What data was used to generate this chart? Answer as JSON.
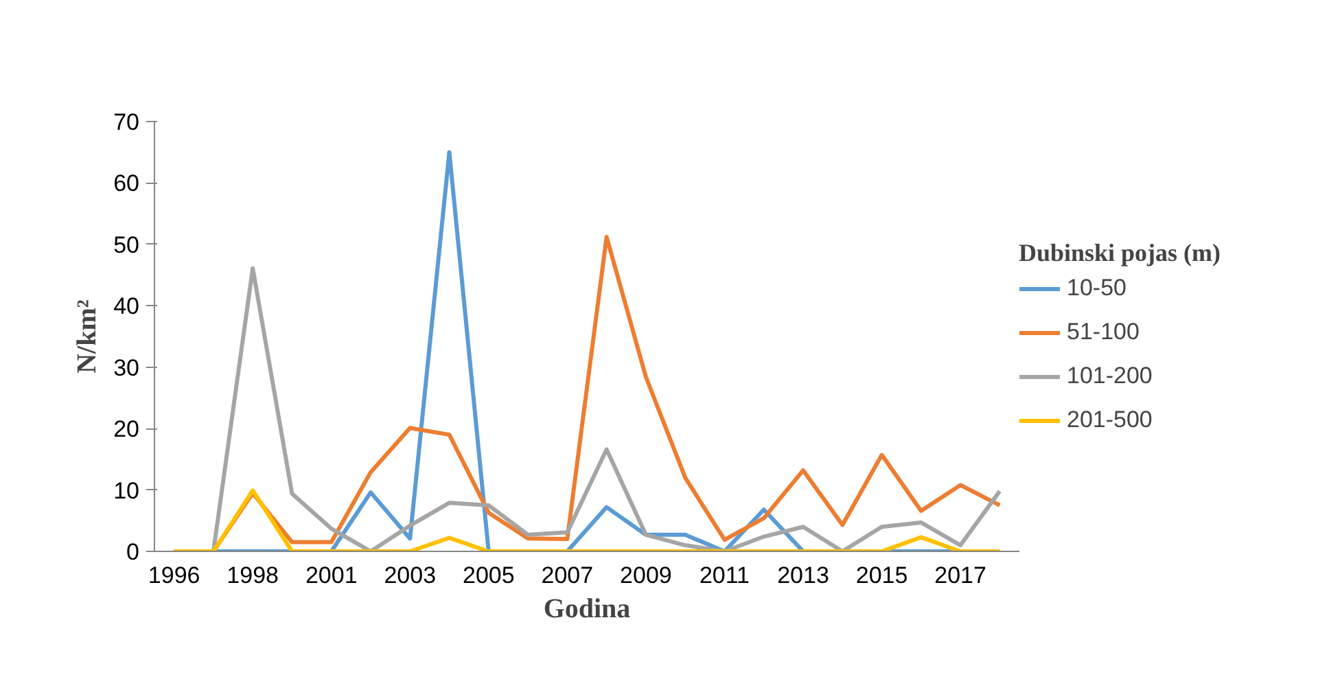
{
  "chart_data": {
    "type": "line",
    "xlabel": "Godina",
    "ylabel": "N/km²",
    "legend_title": "Dubinski pojas (m)",
    "legend": "right",
    "categories": [
      "1996",
      null,
      "1998",
      null,
      "2001",
      null,
      "2003",
      null,
      "2005",
      null,
      "2007",
      null,
      "2009",
      null,
      "2011",
      null,
      "2013",
      null,
      "2015",
      null,
      "2017",
      null
    ],
    "ylim": [
      0,
      70
    ],
    "yticks": [
      0,
      10,
      20,
      30,
      40,
      50,
      60,
      70
    ],
    "series": [
      {
        "name": "10-50",
        "color": "#5b9bd5",
        "values": [
          0,
          0,
          0,
          0,
          0,
          9.6,
          2.1,
          65,
          0,
          0,
          0,
          7.2,
          2.7,
          2.7,
          0,
          6.8,
          0,
          0,
          0,
          0,
          0,
          0
        ]
      },
      {
        "name": "51-100",
        "color": "#ed7d31",
        "values": [
          0,
          0,
          9.5,
          1.5,
          1.5,
          12.9,
          20.1,
          19,
          6.3,
          2.1,
          2,
          51.2,
          28.4,
          12,
          1.9,
          5.4,
          13.2,
          4.3,
          15.7,
          6.6,
          10.8,
          7.5
        ]
      },
      {
        "name": "101-200",
        "color": "#a5a5a5",
        "values": [
          0,
          0,
          46.1,
          9.4,
          3.7,
          0,
          4.2,
          7.9,
          7.5,
          2.7,
          3.1,
          16.6,
          2.7,
          1,
          0,
          2.4,
          4,
          0,
          4,
          4.7,
          1,
          9.8
        ]
      },
      {
        "name": "201-500",
        "color": "#ffc000",
        "values": [
          0,
          0,
          9.9,
          0,
          0,
          0,
          0,
          2.2,
          0,
          0,
          0,
          0,
          0,
          0,
          0,
          0,
          0,
          0,
          0,
          2.3,
          0,
          0
        ]
      }
    ]
  }
}
